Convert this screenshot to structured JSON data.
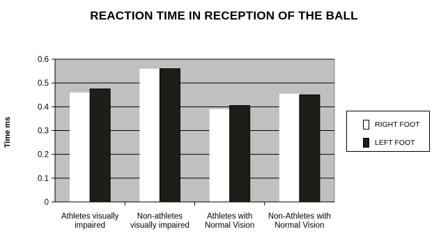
{
  "chart_data": {
    "type": "bar",
    "title": "REACTION TIME IN RECEPTION OF THE BALL",
    "ylabel": "Time ms",
    "xlabel": "",
    "ylim": [
      0,
      0.6
    ],
    "yticks": [
      "0",
      "0.1",
      "0.2",
      "0.3",
      "0.4",
      "0.5",
      "0.6"
    ],
    "categories": [
      "Athletes visually impaired",
      "Non-athletes visually impaired",
      "Athletes with Normal Vision",
      "Non-Athletes with Normal Vision"
    ],
    "series": [
      {
        "name": "RIGHT FOOT",
        "values": [
          0.46,
          0.56,
          0.39,
          0.455
        ],
        "color": "#ffffff"
      },
      {
        "name": "LEFT FOOT",
        "values": [
          0.475,
          0.56,
          0.405,
          0.45
        ],
        "color": "#1e1e18"
      }
    ],
    "grid": true,
    "plot_background": "#c0c0c0",
    "legend_position": "right"
  }
}
